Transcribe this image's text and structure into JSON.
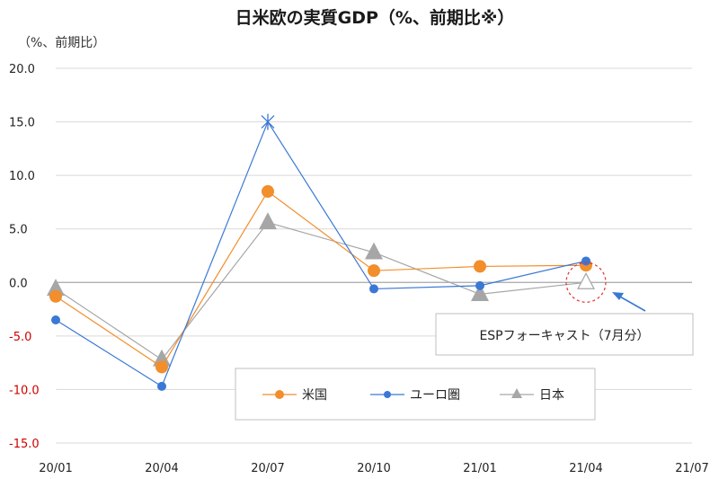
{
  "chart_data": {
    "type": "line",
    "title": "日米欧の実質GDP（%、前期比※）",
    "ylabel": "（%、前期比）",
    "xlabel": "",
    "categories": [
      "20/01",
      "20/04",
      "20/07",
      "20/10",
      "21/01",
      "21/04",
      "21/07"
    ],
    "y_ticks": [
      "20.0",
      "15.0",
      "10.0",
      "5.0",
      "0.0",
      "-5.0",
      "-10.0",
      "-15.0"
    ],
    "ylim": [
      -15,
      20
    ],
    "grid": true,
    "legend_position": "bottom-center",
    "series": [
      {
        "name": "米国",
        "color": "#f28e2b",
        "marker": "circle",
        "values": [
          -1.3,
          -7.9,
          8.5,
          1.1,
          1.5,
          1.6,
          null
        ]
      },
      {
        "name": "ユーロ圏",
        "color": "#3a78d6",
        "marker": "dot",
        "values": [
          -3.5,
          -9.7,
          15.0,
          -0.6,
          -0.3,
          2.0,
          null
        ]
      },
      {
        "name": "日本",
        "color": "#a6a6a6",
        "marker": "triangle",
        "values": [
          -0.6,
          -7.2,
          5.6,
          2.8,
          -1.1,
          0.0,
          null
        ]
      }
    ],
    "annotation": {
      "text": "ESPフォーキャスト（7月分）",
      "target_category": "21/04",
      "target_value": 0.0
    }
  }
}
